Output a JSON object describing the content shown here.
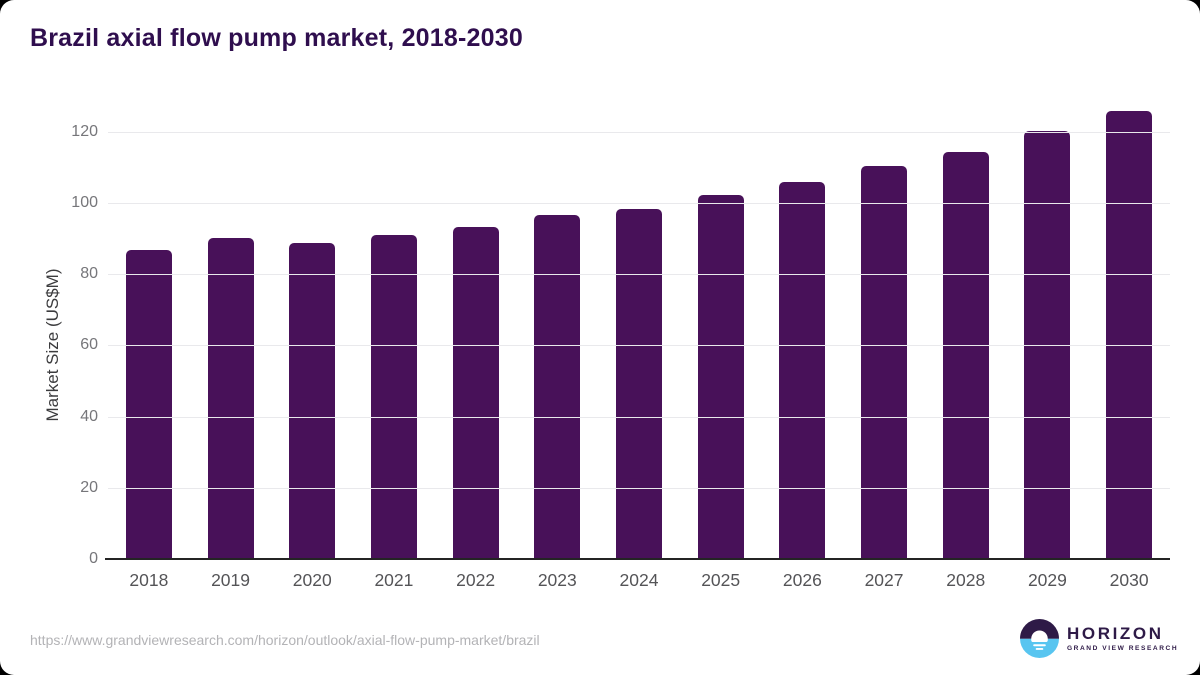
{
  "page": {
    "title": "Brazil axial flow pump market, 2018-2030",
    "source_url": "https://www.grandviewresearch.com/horizon/outlook/axial-flow-pump-market/brazil",
    "logo": {
      "brand": "HORIZON",
      "subtitle": "GRAND VIEW RESEARCH"
    }
  },
  "colors": {
    "bar": "#481159",
    "title_text": "#2f0e4e",
    "grid": "#e9e9ec",
    "axis": "#242424",
    "y_tick_text": "#76767a",
    "x_tick_text": "#545457",
    "url_text": "#b3b3b6",
    "logo_purple": "#2e1a47",
    "logo_blue": "#58c5f0"
  },
  "chart_data": {
    "type": "bar",
    "title": "Brazil axial flow pump market, 2018-2030",
    "categories": [
      "2018",
      "2019",
      "2020",
      "2021",
      "2022",
      "2023",
      "2024",
      "2025",
      "2026",
      "2027",
      "2028",
      "2029",
      "2030"
    ],
    "values": [
      86.9,
      90.1,
      88.7,
      91.0,
      93.3,
      96.5,
      98.2,
      102.2,
      105.9,
      110.4,
      114.3,
      120.3,
      125.8
    ],
    "series_name": "Market Size",
    "xlabel": "",
    "ylabel": "Market Size (US$M)",
    "yticks": [
      0,
      20,
      40,
      60,
      80,
      100,
      120
    ],
    "ylim": [
      0,
      130
    ],
    "grid": true,
    "legend": false,
    "bar_color": "#481159"
  }
}
